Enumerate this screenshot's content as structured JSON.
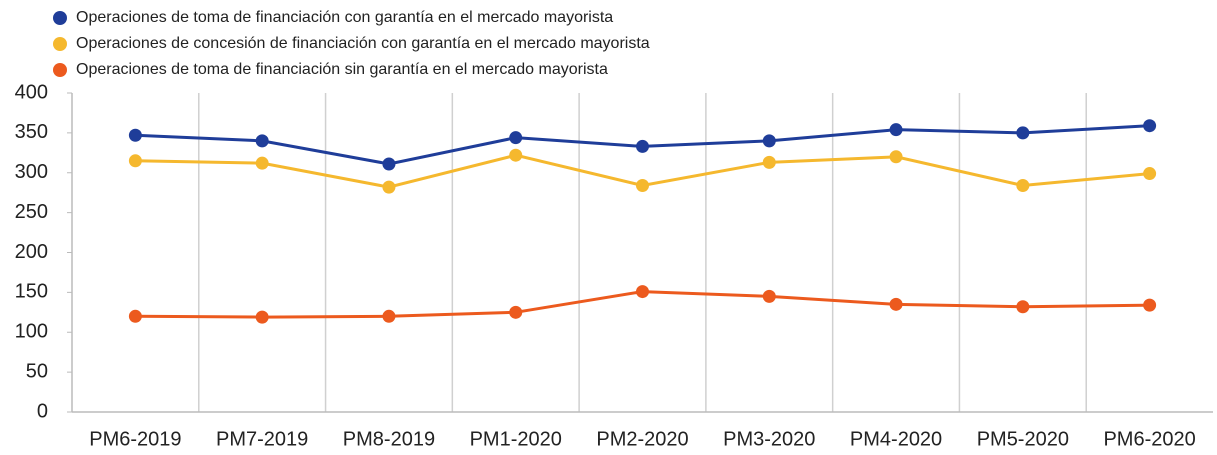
{
  "chart_data": {
    "type": "line",
    "categories": [
      "PM6-2019",
      "PM7-2019",
      "PM8-2019",
      "PM1-2020",
      "PM2-2020",
      "PM3-2020",
      "PM4-2020",
      "PM5-2020",
      "PM6-2020"
    ],
    "series": [
      {
        "name": "Operaciones de toma de financiación con garantía en el mercado mayorista",
        "color": "#1f3d99",
        "values": [
          347,
          340,
          311,
          344,
          333,
          340,
          354,
          350,
          359
        ]
      },
      {
        "name": "Operaciones de concesión de financiación con garantía en el mercado mayorista",
        "color": "#f5b82e",
        "values": [
          315,
          312,
          282,
          322,
          284,
          313,
          320,
          284,
          299
        ]
      },
      {
        "name": "Operaciones de toma de financiación sin garantía en el mercado mayorista",
        "color": "#ec5a1e",
        "values": [
          120,
          119,
          120,
          125,
          151,
          145,
          135,
          132,
          134
        ]
      }
    ],
    "ylim": [
      0,
      400
    ],
    "yticks": [
      0,
      50,
      100,
      150,
      200,
      250,
      300,
      350,
      400
    ],
    "legend": "top-left"
  }
}
